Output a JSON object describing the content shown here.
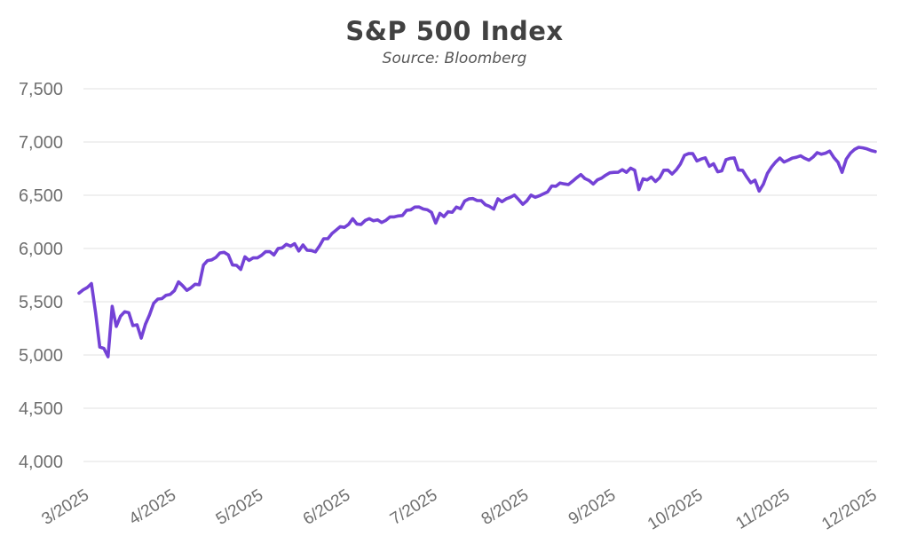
{
  "page": {
    "background": "#ffffff"
  },
  "chart_data": {
    "type": "line",
    "title": "S&P 500 Index",
    "subtitle": "Source: Bloomberg",
    "legend": "none",
    "grid": "horizontal",
    "line_color": "#7442D6",
    "colors": {
      "grid": "#E8E8E8",
      "tick_text": "#6F6F6F",
      "title_text": "#414141",
      "subtitle_text": "#575757"
    },
    "ylim": [
      4000,
      7500
    ],
    "y_ticks": [
      4000,
      4500,
      5000,
      5500,
      6000,
      6500,
      7000,
      7500
    ],
    "y_tick_labels": [
      "4,000",
      "4,500",
      "5,000",
      "5,500",
      "6,000",
      "6,500",
      "7,000",
      "7,500"
    ],
    "x_tick_labels": [
      "3/2025",
      "4/2025",
      "5/2025",
      "6/2025",
      "7/2025",
      "8/2025",
      "9/2025",
      "10/2025",
      "11/2025",
      "12/2025"
    ],
    "x_tick_indices": [
      2,
      23,
      44,
      65,
      86,
      108,
      129,
      150,
      171,
      192
    ],
    "values": [
      5581,
      5612,
      5633,
      5671,
      5396,
      5074,
      5062,
      4983,
      5457,
      5268,
      5363,
      5406,
      5397,
      5276,
      5283,
      5158,
      5288,
      5376,
      5485,
      5525,
      5529,
      5561,
      5569,
      5604,
      5687,
      5650,
      5607,
      5631,
      5664,
      5660,
      5844,
      5887,
      5893,
      5916,
      5958,
      5964,
      5940,
      5845,
      5842,
      5803,
      5922,
      5888,
      5912,
      5912,
      5936,
      5970,
      5971,
      5939,
      6000,
      6006,
      6039,
      6022,
      6045,
      5977,
      6033,
      5983,
      5981,
      5968,
      6025,
      6092,
      6092,
      6141,
      6173,
      6205,
      6198,
      6227,
      6279,
      6230,
      6226,
      6263,
      6280,
      6260,
      6269,
      6244,
      6264,
      6297,
      6297,
      6306,
      6310,
      6359,
      6363,
      6389,
      6390,
      6371,
      6363,
      6339,
      6238,
      6330,
      6299,
      6345,
      6340,
      6389,
      6373,
      6446,
      6466,
      6469,
      6450,
      6449,
      6411,
      6395,
      6370,
      6467,
      6439,
      6466,
      6481,
      6502,
      6460,
      6415,
      6448,
      6502,
      6481,
      6495,
      6513,
      6532,
      6587,
      6584,
      6615,
      6607,
      6600,
      6632,
      6664,
      6694,
      6656,
      6638,
      6605,
      6644,
      6661,
      6688,
      6711,
      6715,
      6716,
      6740,
      6715,
      6754,
      6735,
      6553,
      6654,
      6644,
      6671,
      6629,
      6664,
      6735,
      6736,
      6699,
      6738,
      6792,
      6875,
      6891,
      6891,
      6822,
      6840,
      6852,
      6772,
      6796,
      6720,
      6729,
      6833,
      6847,
      6851,
      6737,
      6734,
      6672,
      6617,
      6642,
      6539,
      6603,
      6705,
      6766,
      6813,
      6849,
      6812,
      6829,
      6849,
      6857,
      6870,
      6847,
      6829,
      6858,
      6900,
      6885,
      6895,
      6915,
      6855,
      6810,
      6715,
      6838,
      6895,
      6930,
      6950,
      6945,
      6935,
      6920,
      6910
    ]
  }
}
